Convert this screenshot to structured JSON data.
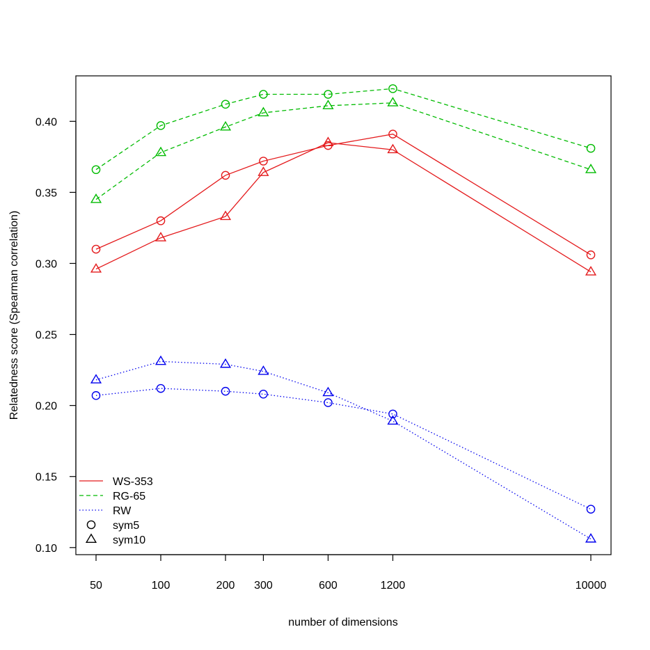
{
  "chart_data": {
    "type": "line",
    "xlabel": "number of dimensions",
    "ylabel": "Relatedness score (Spearman correlation)",
    "x_scale": "log",
    "x": [
      50,
      100,
      200,
      300,
      600,
      1200,
      10000
    ],
    "x_tick_labels": [
      "50",
      "100",
      "200",
      "300",
      "600",
      "1200",
      "10000"
    ],
    "ylim": [
      0.095,
      0.432
    ],
    "y_ticks": [
      0.1,
      0.15,
      0.2,
      0.25,
      0.3,
      0.35,
      0.4
    ],
    "y_tick_labels": [
      "0.10",
      "0.15",
      "0.20",
      "0.25",
      "0.30",
      "0.35",
      "0.40"
    ],
    "grid": false,
    "legend_position": "bottom-left",
    "datasets": [
      {
        "name": "WS-353",
        "color": "#e41a1c",
        "line_style": "solid"
      },
      {
        "name": "RG-65",
        "color": "#00bb00",
        "line_style": "dashed"
      },
      {
        "name": "RW",
        "color": "#0000ee",
        "line_style": "dotted"
      }
    ],
    "window_sizes": [
      {
        "name": "sym5",
        "marker": "circle"
      },
      {
        "name": "sym10",
        "marker": "triangle"
      }
    ],
    "series": [
      {
        "dataset": "WS-353",
        "window": "sym5",
        "values": [
          0.31,
          0.33,
          0.362,
          0.372,
          0.383,
          0.391,
          0.306
        ]
      },
      {
        "dataset": "WS-353",
        "window": "sym10",
        "values": [
          0.296,
          0.318,
          0.333,
          0.364,
          0.385,
          0.38,
          0.294
        ]
      },
      {
        "dataset": "RG-65",
        "window": "sym5",
        "values": [
          0.366,
          0.397,
          0.412,
          0.419,
          0.419,
          0.423,
          0.381
        ]
      },
      {
        "dataset": "RG-65",
        "window": "sym10",
        "values": [
          0.345,
          0.378,
          0.396,
          0.406,
          0.411,
          0.413,
          0.366
        ]
      },
      {
        "dataset": "RW",
        "window": "sym5",
        "values": [
          0.207,
          0.212,
          0.21,
          0.208,
          0.202,
          0.194,
          0.127
        ]
      },
      {
        "dataset": "RW",
        "window": "sym10",
        "values": [
          0.218,
          0.231,
          0.229,
          0.224,
          0.209,
          0.189,
          0.106
        ]
      }
    ],
    "legend": [
      {
        "label": "WS-353",
        "kind": "line",
        "color": "#e41a1c",
        "line_style": "solid"
      },
      {
        "label": "RG-65",
        "kind": "line",
        "color": "#00bb00",
        "line_style": "dashed"
      },
      {
        "label": "RW",
        "kind": "line",
        "color": "#0000ee",
        "line_style": "dotted"
      },
      {
        "label": "sym5",
        "kind": "marker",
        "marker": "circle",
        "color": "#000000"
      },
      {
        "label": "sym10",
        "kind": "marker",
        "marker": "triangle",
        "color": "#000000"
      }
    ]
  }
}
